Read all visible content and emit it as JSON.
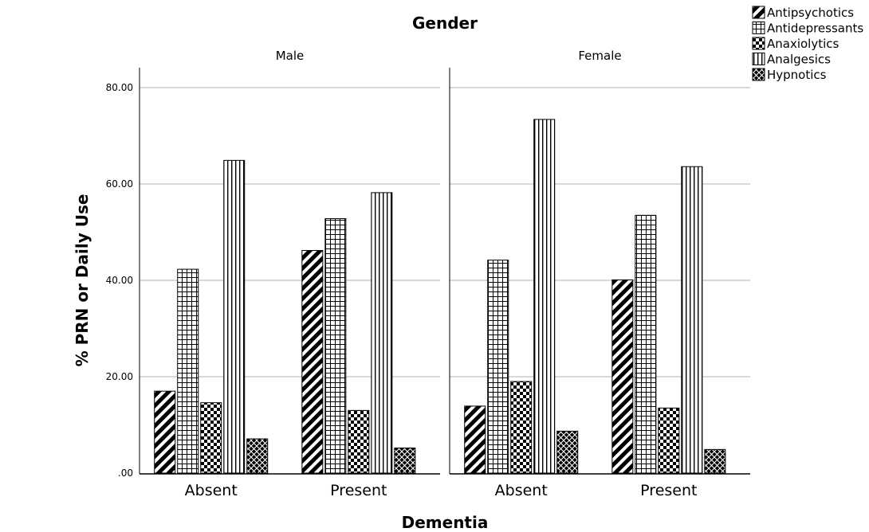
{
  "chart_data": {
    "type": "bar",
    "title": "Gender",
    "xlabel": "Dementia",
    "ylabel": "% PRN or Daily Use",
    "ylim": [
      0,
      80
    ],
    "yticks": [
      ".00",
      "20.00",
      "40.00",
      "60.00",
      "80.00"
    ],
    "grid": true,
    "legend_position": "top-right",
    "categories": [
      "Absent",
      "Present"
    ],
    "panels": [
      {
        "label": "Male",
        "series": [
          {
            "name": "Antipsychotics",
            "values": [
              17.0,
              46.2
            ]
          },
          {
            "name": "Antidepressants",
            "values": [
              42.3,
              52.8
            ]
          },
          {
            "name": "Anaxiolytics",
            "values": [
              14.6,
              13.0
            ]
          },
          {
            "name": "Analgesics",
            "values": [
              64.9,
              58.2
            ]
          },
          {
            "name": "Hypnotics",
            "values": [
              7.1,
              5.2
            ]
          }
        ]
      },
      {
        "label": "Female",
        "series": [
          {
            "name": "Antipsychotics",
            "values": [
              13.9,
              40.1
            ]
          },
          {
            "name": "Antidepressants",
            "values": [
              44.2,
              53.5
            ]
          },
          {
            "name": "Anaxiolytics",
            "values": [
              19.0,
              13.5
            ]
          },
          {
            "name": "Analgesics",
            "values": [
              73.4,
              63.6
            ]
          },
          {
            "name": "Hypnotics",
            "values": [
              8.7,
              4.9
            ]
          }
        ]
      }
    ],
    "legend": [
      {
        "name": "Antipsychotics",
        "pattern": "diagonal-stripes-icon"
      },
      {
        "name": "Antidepressants",
        "pattern": "grid-icon"
      },
      {
        "name": "Anaxiolytics",
        "pattern": "checker-icon"
      },
      {
        "name": "Analgesics",
        "pattern": "vertical-stripes-icon"
      },
      {
        "name": "Hypnotics",
        "pattern": "crosshatch-icon"
      }
    ],
    "colors": {
      "bar_stroke": "#000000",
      "grid": "#b0b0b0",
      "axis": "#000000"
    }
  }
}
